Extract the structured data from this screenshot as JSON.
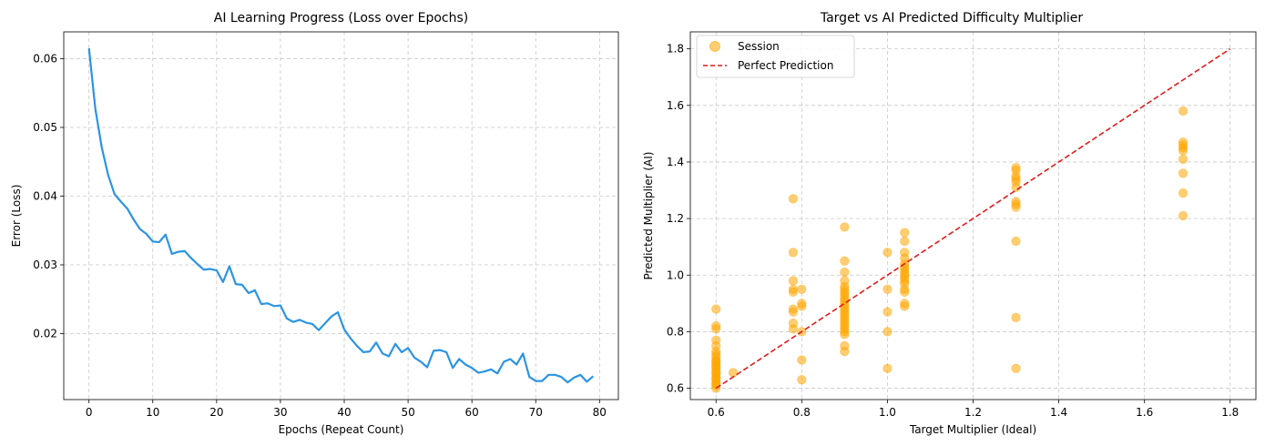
{
  "chart_data": [
    {
      "type": "line",
      "title": "AI Learning Progress (Loss over Epochs)",
      "xlabel": "Epochs (Repeat Count)",
      "ylabel": "Error (Loss)",
      "xlim": [
        -3.95,
        82.95
      ],
      "ylim": [
        0.0104,
        0.0639
      ],
      "xticks": [
        0,
        10,
        20,
        30,
        40,
        50,
        60,
        70,
        80
      ],
      "xtick_labels": [
        "0",
        "10",
        "20",
        "30",
        "40",
        "50",
        "60",
        "70",
        "80"
      ],
      "yticks": [
        0.02,
        0.03,
        0.04,
        0.05,
        0.06
      ],
      "ytick_labels": [
        "0.02",
        "0.03",
        "0.04",
        "0.05",
        "0.06"
      ],
      "grid": true,
      "line_color": "#2b94e3",
      "series": [
        {
          "x": [
            0,
            1,
            2,
            3,
            4,
            5,
            6,
            7,
            8,
            9,
            10,
            11,
            12,
            13,
            14,
            15,
            16,
            17,
            18,
            19,
            20,
            21,
            22,
            23,
            24,
            25,
            26,
            27,
            28,
            29,
            30,
            31,
            32,
            33,
            34,
            35,
            36,
            37,
            38,
            39,
            40,
            41,
            42,
            43,
            44,
            45,
            46,
            47,
            48,
            49,
            50,
            51,
            52,
            53,
            54,
            55,
            56,
            57,
            58,
            59,
            60,
            61,
            62,
            63,
            64,
            65,
            66,
            67,
            68,
            69,
            70,
            71,
            72,
            73,
            74,
            75,
            76,
            77,
            78,
            79
          ],
          "values": [
            0.0615,
            0.0527,
            0.0471,
            0.0431,
            0.0403,
            0.0392,
            0.0382,
            0.0366,
            0.0352,
            0.0345,
            0.0334,
            0.0333,
            0.0344,
            0.0316,
            0.0319,
            0.032,
            0.031,
            0.0301,
            0.0293,
            0.0294,
            0.0292,
            0.0275,
            0.0298,
            0.0272,
            0.0271,
            0.0259,
            0.0263,
            0.0243,
            0.0244,
            0.024,
            0.0241,
            0.0222,
            0.0217,
            0.022,
            0.0216,
            0.0214,
            0.0205,
            0.0215,
            0.0225,
            0.0231,
            0.0206,
            0.0193,
            0.0182,
            0.0173,
            0.0174,
            0.0187,
            0.0171,
            0.0167,
            0.0185,
            0.0173,
            0.0179,
            0.0165,
            0.0159,
            0.0151,
            0.0175,
            0.0176,
            0.0173,
            0.015,
            0.0163,
            0.0155,
            0.015,
            0.0143,
            0.0145,
            0.0148,
            0.0142,
            0.0159,
            0.0163,
            0.0155,
            0.0171,
            0.0137,
            0.0131,
            0.0131,
            0.014,
            0.014,
            0.0137,
            0.0129,
            0.0136,
            0.014,
            0.013,
            0.0138
          ]
        }
      ]
    },
    {
      "type": "scatter",
      "title": "Target vs AI Predicted Difficulty Multiplier",
      "xlabel": "Target Multiplier (Ideal)",
      "ylabel": "Predicted Multiplier (AI)",
      "xlim": [
        0.54,
        1.86
      ],
      "ylim": [
        0.56,
        1.86
      ],
      "xticks": [
        0.6,
        0.8,
        1.0,
        1.2,
        1.4,
        1.6,
        1.8
      ],
      "xtick_labels": [
        "0.6",
        "0.8",
        "1.0",
        "1.2",
        "1.4",
        "1.6",
        "1.8"
      ],
      "yticks": [
        0.6,
        0.8,
        1.0,
        1.2,
        1.4,
        1.6,
        1.8
      ],
      "ytick_labels": [
        "0.6",
        "0.8",
        "1.0",
        "1.2",
        "1.4",
        "1.6",
        "1.8"
      ],
      "grid": true,
      "legend_position": "top-left",
      "point_color": "#ffa500",
      "reference_line_color": "#e31a1c",
      "series": [
        {
          "name": "Session",
          "points": [
            [
              0.6,
              0.88
            ],
            [
              0.6,
              0.82
            ],
            [
              0.6,
              0.81
            ],
            [
              0.6,
              0.77
            ],
            [
              0.6,
              0.75
            ],
            [
              0.6,
              0.73
            ],
            [
              0.6,
              0.72
            ],
            [
              0.6,
              0.71
            ],
            [
              0.6,
              0.7
            ],
            [
              0.6,
              0.69
            ],
            [
              0.6,
              0.68
            ],
            [
              0.6,
              0.67
            ],
            [
              0.6,
              0.66
            ],
            [
              0.6,
              0.65
            ],
            [
              0.6,
              0.64
            ],
            [
              0.6,
              0.63
            ],
            [
              0.6,
              0.62
            ],
            [
              0.6,
              0.61
            ],
            [
              0.6,
              0.6
            ],
            [
              0.6,
              0.615
            ],
            [
              0.6,
              0.635
            ],
            [
              0.6,
              0.655
            ],
            [
              0.6,
              0.675
            ],
            [
              0.6,
              0.695
            ],
            [
              0.64,
              0.655
            ],
            [
              0.78,
              1.27
            ],
            [
              0.78,
              1.08
            ],
            [
              0.78,
              0.98
            ],
            [
              0.78,
              0.95
            ],
            [
              0.78,
              0.94
            ],
            [
              0.78,
              0.88
            ],
            [
              0.78,
              0.87
            ],
            [
              0.78,
              0.83
            ],
            [
              0.78,
              0.81
            ],
            [
              0.8,
              0.95
            ],
            [
              0.8,
              0.9
            ],
            [
              0.8,
              0.89
            ],
            [
              0.8,
              0.8
            ],
            [
              0.8,
              0.7
            ],
            [
              0.8,
              0.63
            ],
            [
              0.9,
              1.17
            ],
            [
              0.9,
              1.05
            ],
            [
              0.9,
              1.01
            ],
            [
              0.9,
              0.98
            ],
            [
              0.9,
              0.96
            ],
            [
              0.9,
              0.95
            ],
            [
              0.9,
              0.94
            ],
            [
              0.9,
              0.93
            ],
            [
              0.9,
              0.92
            ],
            [
              0.9,
              0.91
            ],
            [
              0.9,
              0.9
            ],
            [
              0.9,
              0.89
            ],
            [
              0.9,
              0.88
            ],
            [
              0.9,
              0.87
            ],
            [
              0.9,
              0.86
            ],
            [
              0.9,
              0.85
            ],
            [
              0.9,
              0.84
            ],
            [
              0.9,
              0.83
            ],
            [
              0.9,
              0.82
            ],
            [
              0.9,
              0.81
            ],
            [
              0.9,
              0.8
            ],
            [
              0.9,
              0.79
            ],
            [
              0.9,
              0.75
            ],
            [
              0.9,
              0.73
            ],
            [
              1.0,
              1.08
            ],
            [
              1.0,
              0.95
            ],
            [
              1.0,
              0.87
            ],
            [
              1.0,
              0.8
            ],
            [
              1.0,
              0.67
            ],
            [
              1.04,
              1.15
            ],
            [
              1.04,
              1.12
            ],
            [
              1.04,
              1.08
            ],
            [
              1.04,
              1.06
            ],
            [
              1.04,
              1.04
            ],
            [
              1.04,
              1.03
            ],
            [
              1.04,
              1.02
            ],
            [
              1.04,
              1.01
            ],
            [
              1.04,
              1.0
            ],
            [
              1.04,
              0.99
            ],
            [
              1.04,
              0.98
            ],
            [
              1.04,
              0.97
            ],
            [
              1.04,
              0.95
            ],
            [
              1.04,
              0.94
            ],
            [
              1.04,
              0.9
            ],
            [
              1.04,
              0.89
            ],
            [
              1.3,
              1.38
            ],
            [
              1.3,
              1.37
            ],
            [
              1.3,
              1.35
            ],
            [
              1.3,
              1.34
            ],
            [
              1.3,
              1.33
            ],
            [
              1.3,
              1.31
            ],
            [
              1.3,
              1.26
            ],
            [
              1.3,
              1.25
            ],
            [
              1.3,
              1.24
            ],
            [
              1.3,
              1.12
            ],
            [
              1.3,
              0.85
            ],
            [
              1.3,
              0.67
            ],
            [
              1.69,
              1.58
            ],
            [
              1.69,
              1.47
            ],
            [
              1.69,
              1.46
            ],
            [
              1.69,
              1.45
            ],
            [
              1.69,
              1.44
            ],
            [
              1.69,
              1.41
            ],
            [
              1.69,
              1.36
            ],
            [
              1.69,
              1.29
            ],
            [
              1.69,
              1.21
            ]
          ]
        },
        {
          "name": "Perfect Prediction",
          "points": [
            [
              0.6,
              0.6
            ],
            [
              1.8,
              1.8
            ]
          ]
        }
      ]
    }
  ]
}
